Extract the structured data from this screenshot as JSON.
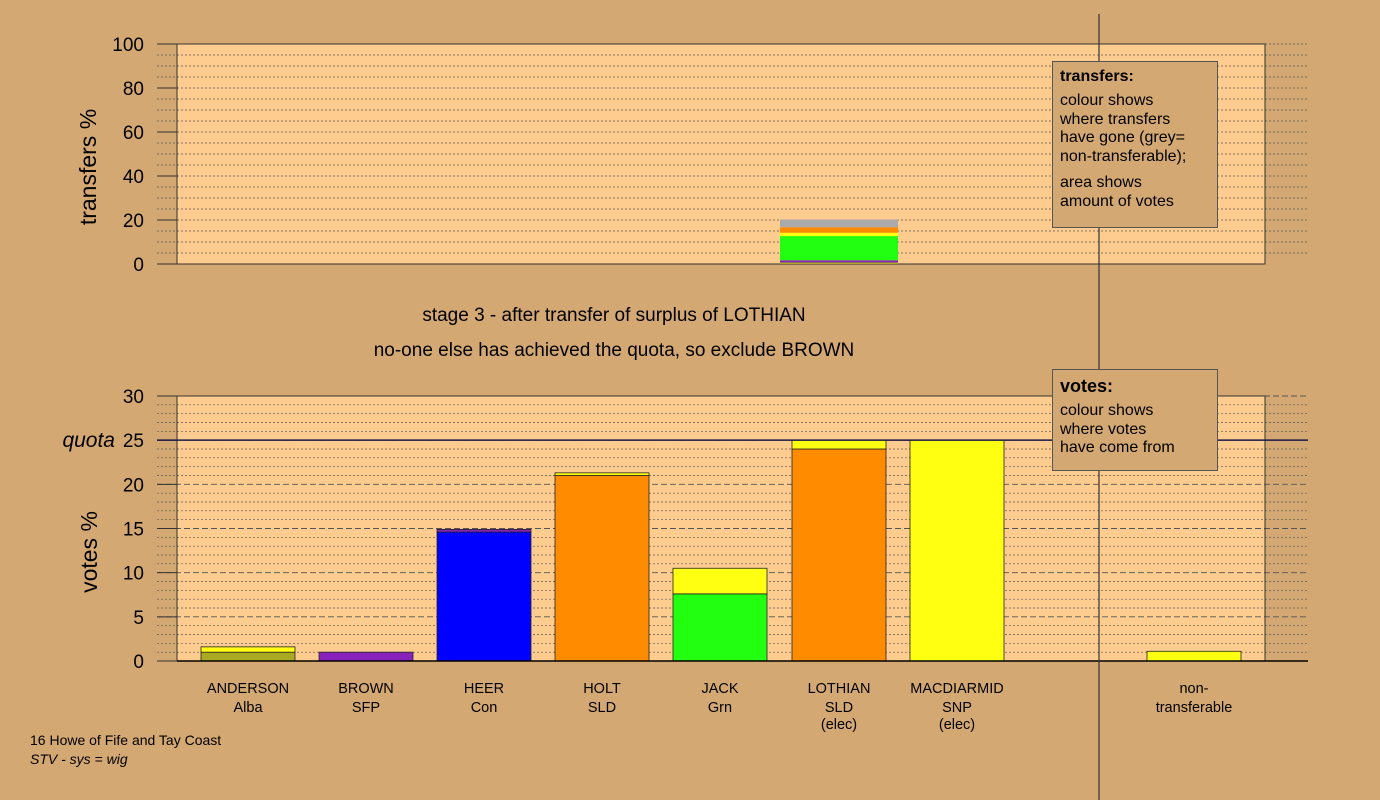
{
  "stage_line1": "stage 3 - after transfer of surplus of LOTHIAN",
  "stage_line2": "no-one else has achieved the quota, so exclude BROWN",
  "footer_line1": "16 Howe of Fife and Tay Coast",
  "footer_line2": "STV - sys = wig",
  "legend_transfers": {
    "title": "transfers:",
    "lines1": [
      "colour shows",
      "where transfers",
      "have gone (grey=",
      "non-transferable);"
    ],
    "lines2": [
      "area shows",
      "amount of votes"
    ]
  },
  "legend_votes": {
    "title": "votes:",
    "lines": [
      "colour shows",
      "where votes",
      "have come from"
    ]
  },
  "colors": {
    "background": "#d4a872",
    "plot_bg": "#ffcc8f",
    "Alba": "#aaaa22",
    "SFP": "#8822bb",
    "Con": "#0000ff",
    "SLD": "#ff8c00",
    "Grn": "#22ff11",
    "SNP": "#ffff11",
    "nontransferable": "#aaaaaa"
  },
  "chart_data": [
    {
      "type": "bar",
      "subtype": "stacked",
      "name": "transfers",
      "ylabel": "transfers %",
      "ylim": [
        0,
        100
      ],
      "yticks": [
        0,
        20,
        40,
        60,
        80,
        100
      ],
      "bars": [
        {
          "category_index": 5,
          "segments": [
            {
              "party": "Alba",
              "value": 0.7
            },
            {
              "party": "SFP",
              "value": 1.0
            },
            {
              "party": "Grn",
              "value": 11.0
            },
            {
              "party": "SNP",
              "value": 1.5
            },
            {
              "party": "SLD",
              "value": 2.5
            },
            {
              "party": "nontransferable",
              "value": 3.5
            }
          ]
        }
      ]
    },
    {
      "type": "bar",
      "subtype": "stacked",
      "name": "votes",
      "ylabel": "votes %",
      "ylim": [
        0,
        30
      ],
      "yticks": [
        0,
        5,
        10,
        15,
        20,
        25,
        30
      ],
      "quota": 25,
      "quota_label": "quota",
      "categories": [
        {
          "name": "ANDERSON",
          "party": "Alba",
          "extra": ""
        },
        {
          "name": "BROWN",
          "party": "SFP",
          "extra": ""
        },
        {
          "name": "HEER",
          "party": "Con",
          "extra": ""
        },
        {
          "name": "HOLT",
          "party": "SLD",
          "extra": ""
        },
        {
          "name": "JACK",
          "party": "Grn",
          "extra": ""
        },
        {
          "name": "LOTHIAN",
          "party": "SLD",
          "extra": "(elec)"
        },
        {
          "name": "MACDIARMID",
          "party": "SNP",
          "extra": "(elec)"
        }
      ],
      "nontransferable_label": [
        "non-",
        "transferable"
      ],
      "bars": [
        {
          "segments": [
            {
              "party": "Alba",
              "value": 1.0
            },
            {
              "party": "SNP",
              "value": 0.6
            }
          ]
        },
        {
          "segments": [
            {
              "party": "SFP",
              "value": 1.0
            }
          ]
        },
        {
          "segments": [
            {
              "party": "Con",
              "value": 14.6
            },
            {
              "party": "SFP",
              "value": 0.3
            }
          ]
        },
        {
          "segments": [
            {
              "party": "SLD",
              "value": 21.0
            },
            {
              "party": "SNP",
              "value": 0.3
            }
          ]
        },
        {
          "segments": [
            {
              "party": "Grn",
              "value": 7.6
            },
            {
              "party": "SNP",
              "value": 2.9
            }
          ]
        },
        {
          "segments": [
            {
              "party": "SLD",
              "value": 24.0
            },
            {
              "party": "SNP",
              "value": 1.0
            }
          ]
        },
        {
          "segments": [
            {
              "party": "SNP",
              "value": 25.0
            }
          ]
        },
        {
          "segments": [
            {
              "party": "SNP",
              "value": 1.1
            }
          ],
          "nontransferable": true
        }
      ]
    }
  ]
}
